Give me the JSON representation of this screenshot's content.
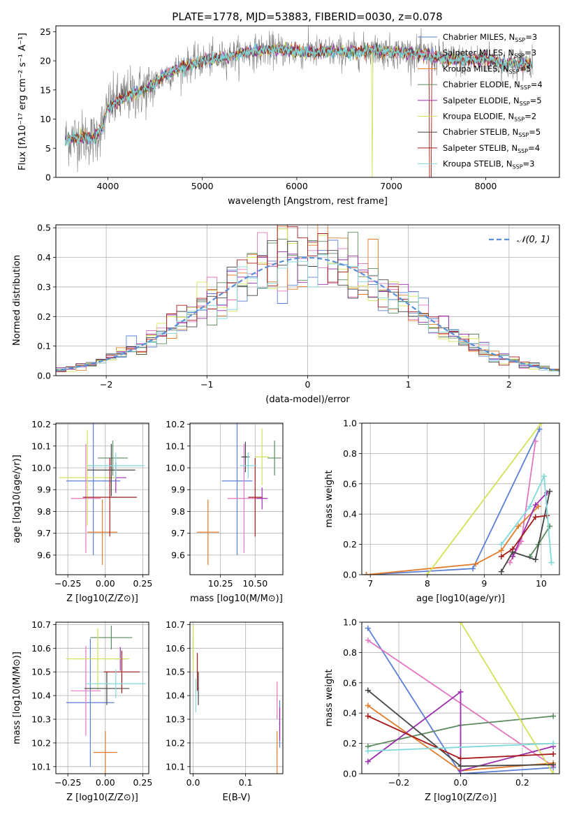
{
  "colors": {
    "Chabrier MILES": "#5b7fd6",
    "Salpeter MILES": "#e377c2",
    "Kroupa MILES": "#e07b2b",
    "Chabrier ELODIE": "#5a8a5e",
    "Salpeter ELODIE": "#9b2fae",
    "Kroupa ELODIE": "#d4e157",
    "Chabrier STELIB": "#454545",
    "Salpeter STELIB": "#a61b1b",
    "Kroupa STELIB": "#7fd8d8",
    "observed": "#7f7f7f",
    "normal": "#5a8ed6"
  },
  "chart_data": [
    {
      "id": "spectrum",
      "type": "line",
      "title": "PLATE=1778, MJD=53883, FIBERID=0030, z=0.078",
      "xlabel": "wavelength [Angstrom, rest frame]",
      "ylabel": "Flux [fλ10⁻¹⁷ erg cm⁻² s⁻¹ A⁻¹]",
      "xlim": [
        3450,
        8780
      ],
      "ylim": [
        0,
        26
      ],
      "xticks": [
        "4000",
        "5000",
        "6000",
        "7000",
        "8000"
      ],
      "yticks": [
        "0",
        "5",
        "10",
        "15",
        "20",
        "25"
      ],
      "legend_position": "upper right",
      "legend": [
        {
          "name": "Chabrier MILES, N",
          "sub": "SSP",
          "tail": "=3",
          "model": "Chabrier MILES"
        },
        {
          "name": "Salpeter MILES, N",
          "sub": "SSP",
          "tail": "=3",
          "model": "Salpeter MILES"
        },
        {
          "name": "Kroupa MILES, N",
          "sub": "SSP",
          "tail": "=5",
          "model": "Kroupa MILES"
        },
        {
          "name": "Chabrier ELODIE, N",
          "sub": "SSP",
          "tail": "=4",
          "model": "Chabrier ELODIE"
        },
        {
          "name": "Salpeter ELODIE, N",
          "sub": "SSP",
          "tail": "=5",
          "model": "Salpeter ELODIE"
        },
        {
          "name": "Kroupa ELODIE, N",
          "sub": "SSP",
          "tail": "=2",
          "model": "Kroupa ELODIE"
        },
        {
          "name": "Chabrier STELIB, N",
          "sub": "SSP",
          "tail": "=5",
          "model": "Chabrier STELIB"
        },
        {
          "name": "Salpeter STELIB, N",
          "sub": "SSP",
          "tail": "=4",
          "model": "Salpeter STELIB"
        },
        {
          "name": "Kroupa STELIB, N",
          "sub": "SSP",
          "tail": "=3",
          "model": "Kroupa STELIB"
        }
      ],
      "continuum": [
        [
          3550,
          6.5
        ],
        [
          3700,
          7.0
        ],
        [
          3850,
          6.5
        ],
        [
          3950,
          9.0
        ],
        [
          4000,
          12.0
        ],
        [
          4200,
          14.0
        ],
        [
          4400,
          15.0
        ],
        [
          4600,
          17.5
        ],
        [
          4800,
          19.0
        ],
        [
          5000,
          20.0
        ],
        [
          5200,
          20.5
        ],
        [
          5500,
          21.5
        ],
        [
          5800,
          22.0
        ],
        [
          6000,
          21.5
        ],
        [
          6300,
          21.5
        ],
        [
          6600,
          21.5
        ],
        [
          6800,
          21.8
        ],
        [
          7000,
          21.5
        ],
        [
          7300,
          21.2
        ],
        [
          7500,
          20.5
        ],
        [
          7800,
          20.0
        ],
        [
          8000,
          20.5
        ],
        [
          8200,
          19.5
        ],
        [
          8500,
          19.5
        ]
      ]
    },
    {
      "id": "residuals",
      "type": "bar",
      "xlabel": "(data-model)/error",
      "ylabel": "Normed distribution",
      "xlim": [
        -2.5,
        2.5
      ],
      "ylim": [
        0,
        0.51
      ],
      "xticks": [
        "−2",
        "−1",
        "0",
        "1",
        "2"
      ],
      "yticks": [
        "0.0",
        "0.1",
        "0.2",
        "0.3",
        "0.4",
        "0.5"
      ],
      "legend_position": "upper right",
      "legend": "𝒩(0, 1)",
      "bin_width": 0.1,
      "reference_curve": "normal(0,1)"
    },
    {
      "id": "age-vs-Z",
      "type": "scatter",
      "xlabel": "Z [log10(Z/Z⊙)]",
      "ylabel": "age  [log10(age/yr)]",
      "xlim": [
        -0.33,
        0.29
      ],
      "ylim": [
        9.51,
        10.205
      ],
      "xticks": [
        "−0.25",
        "0.00",
        "0.25"
      ],
      "yticks": [
        "9.6",
        "9.7",
        "9.8",
        "9.9",
        "10.0",
        "10.1",
        "10.2"
      ],
      "points": [
        {
          "model": "Chabrier MILES",
          "x": -0.08,
          "y": 9.94,
          "xerr": 0.18,
          "yerr": 0.34
        },
        {
          "model": "Salpeter MILES",
          "x": -0.13,
          "y": 9.86,
          "xerr": 0.1,
          "yerr": 0.25
        },
        {
          "model": "Kroupa MILES",
          "x": -0.02,
          "y": 9.705,
          "xerr": 0.1,
          "yerr": 0.15
        },
        {
          "model": "Chabrier ELODIE",
          "x": 0.05,
          "y": 10.045,
          "xerr": 0.1,
          "yerr": 0.08
        },
        {
          "model": "Salpeter ELODIE",
          "x": 0.07,
          "y": 9.955,
          "xerr": 0.07,
          "yerr": 0.07
        },
        {
          "model": "Kroupa ELODIE",
          "x": -0.12,
          "y": 9.955,
          "xerr": 0.19,
          "yerr": 0.22
        },
        {
          "model": "Chabrier STELIB",
          "x": 0.04,
          "y": 9.99,
          "xerr": 0.16,
          "yerr": 0.12
        },
        {
          "model": "Salpeter STELIB",
          "x": 0.03,
          "y": 9.865,
          "xerr": 0.18,
          "yerr": 0.18
        },
        {
          "model": "Kroupa STELIB",
          "x": 0.07,
          "y": 10.01,
          "xerr": 0.19,
          "yerr": 0.06
        }
      ]
    },
    {
      "id": "age-vs-mass",
      "type": "scatter",
      "xlabel": "mass [log10(M/M⊙)]",
      "ylabel": "",
      "xlim": [
        10.03,
        10.7
      ],
      "ylim": [
        9.51,
        10.205
      ],
      "xticks": [
        "10.25",
        "10.50"
      ],
      "yticks": [
        "9.6",
        "9.7",
        "9.8",
        "9.9",
        "10.0",
        "10.1",
        "10.2"
      ],
      "points": [
        {
          "model": "Chabrier MILES",
          "x": 10.37,
          "y": 9.94,
          "xerr": 0.11,
          "yerr": 0.34
        },
        {
          "model": "Salpeter MILES",
          "x": 10.42,
          "y": 9.86,
          "xerr": 0.12,
          "yerr": 0.25
        },
        {
          "model": "Kroupa MILES",
          "x": 10.16,
          "y": 9.705,
          "xerr": 0.08,
          "yerr": 0.15
        },
        {
          "model": "Chabrier ELODIE",
          "x": 10.64,
          "y": 10.045,
          "xerr": 0.05,
          "yerr": 0.08
        },
        {
          "model": "Salpeter ELODIE",
          "x": 10.55,
          "y": 9.86,
          "xerr": 0.04,
          "yerr": 0.05
        },
        {
          "model": "Kroupa ELODIE",
          "x": 10.55,
          "y": 10.05,
          "xerr": 0.05,
          "yerr": 0.13
        },
        {
          "model": "Chabrier STELIB",
          "x": 10.43,
          "y": 10.05,
          "xerr": 0.03,
          "yerr": 0.07
        },
        {
          "model": "Salpeter STELIB",
          "x": 10.5,
          "y": 9.865,
          "xerr": 0.05,
          "yerr": 0.18
        },
        {
          "model": "Kroupa STELIB",
          "x": 10.45,
          "y": 10.01,
          "xerr": 0.06,
          "yerr": 0.06
        }
      ]
    },
    {
      "id": "weight-vs-age",
      "type": "line",
      "xlabel": "age  [log10(age/yr)]",
      "ylabel": "mass weight",
      "xlim": [
        6.85,
        10.32
      ],
      "ylim": [
        0,
        1
      ],
      "xticks": [
        "7",
        "8",
        "9",
        "10"
      ],
      "yticks": [
        "0.0",
        "0.2",
        "0.4",
        "0.6",
        "0.8",
        "1.0"
      ],
      "series": [
        {
          "model": "Chabrier MILES",
          "points": [
            [
              6.93,
              0.0
            ],
            [
              8.8,
              0.04
            ],
            [
              9.97,
              0.96
            ]
          ]
        },
        {
          "model": "Salpeter MILES",
          "points": [
            [
              9.45,
              0.08
            ],
            [
              9.65,
              0.22
            ],
            [
              9.9,
              0.88
            ]
          ]
        },
        {
          "model": "Kroupa MILES",
          "points": [
            [
              6.93,
              0.0
            ],
            [
              8.85,
              0.07
            ],
            [
              9.3,
              0.16
            ],
            [
              9.6,
              0.32
            ],
            [
              9.95,
              0.45
            ]
          ]
        },
        {
          "model": "Chabrier ELODIE",
          "points": [
            [
              9.8,
              0.12
            ],
            [
              9.95,
              0.2
            ],
            [
              10.15,
              0.32
            ]
          ]
        },
        {
          "model": "Salpeter ELODIE",
          "points": [
            [
              9.5,
              0.12
            ],
            [
              9.9,
              0.46
            ],
            [
              10.1,
              0.54
            ]
          ]
        },
        {
          "model": "Kroupa ELODIE",
          "points": [
            [
              8.0,
              0.0
            ],
            [
              10.0,
              1.0
            ]
          ]
        },
        {
          "model": "Chabrier STELIB",
          "points": [
            [
              9.3,
              0.02
            ],
            [
              9.5,
              0.15
            ],
            [
              9.9,
              0.1
            ],
            [
              10.15,
              0.55
            ]
          ]
        },
        {
          "model": "Salpeter STELIB",
          "points": [
            [
              9.3,
              0.12
            ],
            [
              9.5,
              0.17
            ],
            [
              9.9,
              0.38
            ],
            [
              10.1,
              0.39
            ]
          ]
        },
        {
          "model": "Kroupa STELIB",
          "points": [
            [
              9.3,
              0.2
            ],
            [
              9.8,
              0.45
            ],
            [
              10.05,
              0.65
            ],
            [
              10.18,
              0.08
            ]
          ]
        }
      ]
    },
    {
      "id": "mass-vs-Z",
      "type": "scatter",
      "xlabel": "Z [log10(Z/Z⊙)]",
      "ylabel": "mass [log10(M/M⊙)]",
      "xlim": [
        -0.33,
        0.29
      ],
      "ylim": [
        10.07,
        10.71
      ],
      "xticks": [
        "−0.25",
        "0.00",
        "0.25"
      ],
      "yticks": [
        "10.1",
        "10.2",
        "10.3",
        "10.4",
        "10.5",
        "10.6",
        "10.7"
      ],
      "points": [
        {
          "model": "Chabrier MILES",
          "x": -0.1,
          "y": 10.37,
          "xerr": 0.16,
          "yerr": 0.27
        },
        {
          "model": "Salpeter MILES",
          "x": -0.13,
          "y": 10.42,
          "xerr": 0.1,
          "yerr": 0.19
        },
        {
          "model": "Kroupa MILES",
          "x": 0.0,
          "y": 10.16,
          "xerr": 0.08,
          "yerr": 0.09
        },
        {
          "model": "Chabrier ELODIE",
          "x": 0.04,
          "y": 10.645,
          "xerr": 0.14,
          "yerr": 0.05
        },
        {
          "model": "Salpeter ELODIE",
          "x": 0.1,
          "y": 10.555,
          "xerr": 0.04,
          "yerr": 0.05
        },
        {
          "model": "Kroupa ELODIE",
          "x": -0.05,
          "y": 10.555,
          "xerr": 0.21,
          "yerr": 0.13
        },
        {
          "model": "Chabrier STELIB",
          "x": 0.01,
          "y": 10.43,
          "xerr": 0.15,
          "yerr": 0.07
        },
        {
          "model": "Salpeter STELIB",
          "x": 0.11,
          "y": 10.5,
          "xerr": 0.12,
          "yerr": 0.09
        },
        {
          "model": "Kroupa STELIB",
          "x": 0.07,
          "y": 10.45,
          "xerr": 0.2,
          "yerr": 0.06
        }
      ]
    },
    {
      "id": "mass-vs-EBV",
      "type": "scatter",
      "xlabel": "E(B-V)",
      "ylabel": "",
      "xlim": [
        -0.006,
        0.171
      ],
      "ylim": [
        10.07,
        10.71
      ],
      "xticks": [
        "0.0",
        "0.1"
      ],
      "yticks": [
        "10.1",
        "10.2",
        "10.3",
        "10.4",
        "10.5",
        "10.6",
        "10.7"
      ],
      "points": [
        {
          "model": "Chabrier MILES",
          "x": 0.165,
          "y": 10.28,
          "xerr": 0.001,
          "yerr": 0.1
        },
        {
          "model": "Salpeter MILES",
          "x": 0.16,
          "y": 10.38,
          "xerr": 0.001,
          "yerr": 0.08
        },
        {
          "model": "Kroupa MILES",
          "x": 0.16,
          "y": 10.16,
          "xerr": 0.001,
          "yerr": 0.09
        },
        {
          "model": "Chabrier ELODIE",
          "x": 0.0,
          "y": 10.6,
          "xerr": 0.001,
          "yerr": 0.05
        },
        {
          "model": "Salpeter ELODIE",
          "x": 0.165,
          "y": 10.28,
          "xerr": 0.001,
          "yerr": 0.07
        },
        {
          "model": "Kroupa ELODIE",
          "x": 0.0,
          "y": 10.6,
          "xerr": 0.001,
          "yerr": 0.1
        },
        {
          "model": "Chabrier STELIB",
          "x": 0.01,
          "y": 10.43,
          "xerr": 0.001,
          "yerr": 0.07
        },
        {
          "model": "Salpeter STELIB",
          "x": 0.008,
          "y": 10.5,
          "xerr": 0.001,
          "yerr": 0.08
        },
        {
          "model": "Kroupa STELIB",
          "x": 0.005,
          "y": 10.4,
          "xerr": 0.001,
          "yerr": 0.07
        }
      ]
    },
    {
      "id": "weight-vs-Z",
      "type": "line",
      "xlabel": "Z [log10(Z/Z⊙)]",
      "ylabel": "mass weight",
      "xlim": [
        -0.32,
        0.32
      ],
      "ylim": [
        0,
        1
      ],
      "xticks": [
        "−0.2",
        "0.0",
        "0.2"
      ],
      "yticks": [
        "0.0",
        "0.2",
        "0.4",
        "0.6",
        "0.8",
        "1.0"
      ],
      "series": [
        {
          "model": "Chabrier MILES",
          "points": [
            [
              -0.3,
              0.96
            ],
            [
              0.0,
              0.0
            ],
            [
              0.3,
              0.04
            ]
          ]
        },
        {
          "model": "Salpeter MILES",
          "points": [
            [
              -0.3,
              0.88
            ],
            [
              0.3,
              0.05
            ]
          ]
        },
        {
          "model": "Kroupa MILES",
          "points": [
            [
              -0.3,
              0.45
            ],
            [
              0.0,
              0.02
            ],
            [
              0.3,
              0.07
            ]
          ]
        },
        {
          "model": "Chabrier ELODIE",
          "points": [
            [
              -0.3,
              0.18
            ],
            [
              0.0,
              0.32
            ],
            [
              0.3,
              0.38
            ]
          ]
        },
        {
          "model": "Salpeter ELODIE",
          "points": [
            [
              -0.3,
              0.08
            ],
            [
              0.0,
              0.54
            ],
            [
              0.0,
              0.02
            ],
            [
              0.3,
              0.18
            ]
          ]
        },
        {
          "model": "Kroupa ELODIE",
          "points": [
            [
              0.0,
              1.0
            ],
            [
              0.3,
              0.0
            ]
          ]
        },
        {
          "model": "Chabrier STELIB",
          "points": [
            [
              -0.3,
              0.55
            ],
            [
              0.0,
              0.05
            ],
            [
              0.3,
              0.06
            ]
          ]
        },
        {
          "model": "Salpeter STELIB",
          "points": [
            [
              -0.3,
              0.38
            ],
            [
              0.0,
              0.1
            ],
            [
              0.3,
              0.13
            ]
          ]
        },
        {
          "model": "Kroupa STELIB",
          "points": [
            [
              -0.3,
              0.15
            ],
            [
              0.3,
              0.2
            ]
          ]
        }
      ]
    }
  ]
}
